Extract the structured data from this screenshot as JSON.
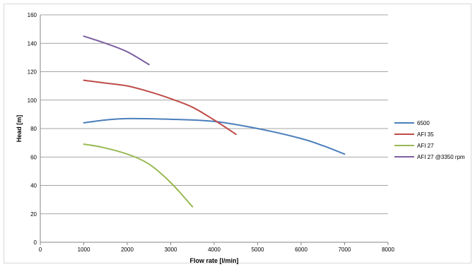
{
  "chart_data": {
    "type": "line",
    "xlabel": "Flow rate [l/min]",
    "ylabel": "Head [m]",
    "xlim": [
      0,
      8000
    ],
    "ylim": [
      0,
      160
    ],
    "x_ticks": [
      "0",
      "1000",
      "2000",
      "3000",
      "4000",
      "5000",
      "6000",
      "7000",
      "8000"
    ],
    "y_ticks": [
      "0",
      "20",
      "40",
      "60",
      "80",
      "100",
      "120",
      "140",
      "160"
    ],
    "grid": "horizontal",
    "legend_position": "right",
    "series": [
      {
        "name": "6500",
        "color": "#4a7ebb",
        "points": [
          [
            1000,
            84
          ],
          [
            1500,
            86
          ],
          [
            2000,
            87
          ],
          [
            3000,
            86.5
          ],
          [
            4000,
            85
          ],
          [
            5000,
            80
          ],
          [
            6000,
            73
          ],
          [
            6500,
            68
          ],
          [
            7000,
            62
          ]
        ]
      },
      {
        "name": "AFI 35",
        "color": "#be4b48",
        "points": [
          [
            1000,
            114
          ],
          [
            1500,
            112
          ],
          [
            2000,
            110
          ],
          [
            2500,
            106
          ],
          [
            3000,
            101
          ],
          [
            3500,
            95
          ],
          [
            4000,
            86
          ],
          [
            4500,
            76
          ]
        ]
      },
      {
        "name": "AFI 27",
        "color": "#98b954",
        "points": [
          [
            1000,
            69
          ],
          [
            1400,
            67
          ],
          [
            2000,
            62
          ],
          [
            2500,
            55
          ],
          [
            3000,
            42
          ],
          [
            3500,
            25
          ]
        ]
      },
      {
        "name": "AFI 27 @3350 rpm",
        "color": "#7d60a0",
        "points": [
          [
            1000,
            145
          ],
          [
            1500,
            140
          ],
          [
            2000,
            134
          ],
          [
            2500,
            125
          ]
        ]
      }
    ]
  }
}
